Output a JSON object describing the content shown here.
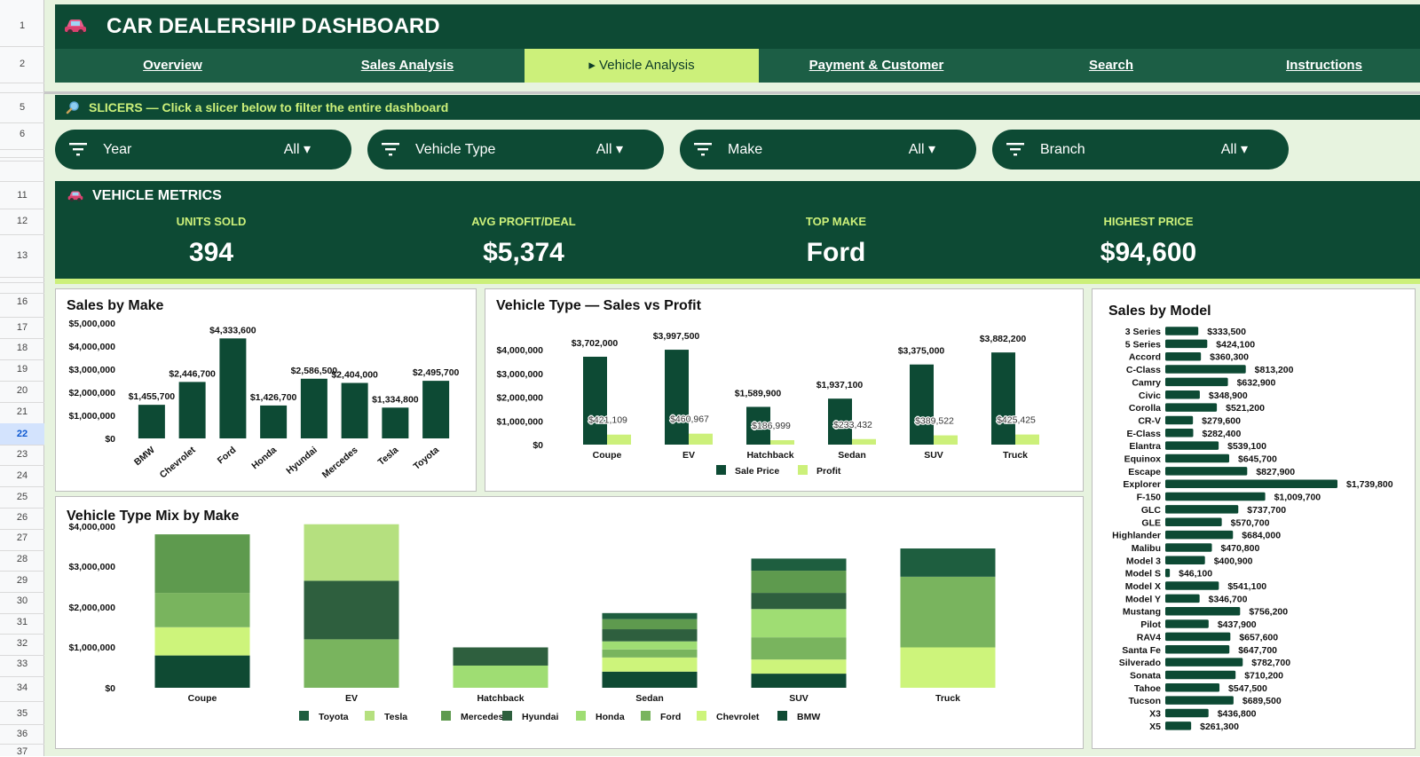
{
  "row_numbers": [
    {
      "n": "1",
      "y": 30
    },
    {
      "n": "2",
      "y": 73
    },
    {
      "n": "5",
      "y": 122
    },
    {
      "n": "6",
      "y": 152
    },
    {
      "n": "11",
      "y": 221
    },
    {
      "n": "12",
      "y": 250
    },
    {
      "n": "13",
      "y": 289
    },
    {
      "n": "16",
      "y": 341
    },
    {
      "n": "17",
      "y": 370
    },
    {
      "n": "18",
      "y": 393
    },
    {
      "n": "19",
      "y": 417
    },
    {
      "n": "20",
      "y": 441
    },
    {
      "n": "21",
      "y": 465
    },
    {
      "n": "22",
      "y": 489
    },
    {
      "n": "23",
      "y": 513
    },
    {
      "n": "24",
      "y": 537
    },
    {
      "n": "25",
      "y": 561
    },
    {
      "n": "26",
      "y": 584
    },
    {
      "n": "27",
      "y": 607
    },
    {
      "n": "28",
      "y": 631
    },
    {
      "n": "29",
      "y": 655
    },
    {
      "n": "30",
      "y": 678
    },
    {
      "n": "31",
      "y": 702
    },
    {
      "n": "32",
      "y": 726
    },
    {
      "n": "33",
      "y": 749
    },
    {
      "n": "34",
      "y": 776
    },
    {
      "n": "35",
      "y": 805
    },
    {
      "n": "36",
      "y": 828
    },
    {
      "n": "37",
      "y": 848
    }
  ],
  "selected_row": "22",
  "header": {
    "title": "CAR DEALERSHIP DASHBOARD",
    "icon": "car-icon"
  },
  "nav": {
    "tabs": [
      {
        "label": "Overview",
        "active": false
      },
      {
        "label": "Sales Analysis",
        "active": false
      },
      {
        "label": "▸ Vehicle Analysis",
        "active": true
      },
      {
        "label": "Payment & Customer",
        "active": false
      },
      {
        "label": "Search",
        "active": false
      },
      {
        "label": "Instructions",
        "active": false
      }
    ]
  },
  "slicer_bar": {
    "text": "SLICERS — Click a slicer below to filter the entire dashboard",
    "icon": "magnifier-icon"
  },
  "slicers": [
    {
      "name": "Year",
      "value": "All ▾"
    },
    {
      "name": "Vehicle Type",
      "value": "All ▾"
    },
    {
      "name": "Make",
      "value": "All ▾"
    },
    {
      "name": "Branch",
      "value": "All ▾"
    }
  ],
  "metrics": {
    "title": "VEHICLE METRICS",
    "items": [
      {
        "label": "UNITS SOLD",
        "value": "394"
      },
      {
        "label": "AVG PROFIT/DEAL",
        "value": "$5,374"
      },
      {
        "label": "TOP MAKE",
        "value": "Ford"
      },
      {
        "label": "HIGHEST PRICE",
        "value": "$94,600"
      }
    ]
  },
  "colors": {
    "dark": "#0d4a34",
    "accent": "#ccf07a",
    "nav": "#1c5e45",
    "bar": "#0d4a34",
    "profit": "#ccf07a"
  },
  "charts": {
    "sales_by_make": {
      "title": "Sales by Make",
      "chart_data": {
        "type": "bar",
        "categories": [
          "BMW",
          "Chevrolet",
          "Ford",
          "Honda",
          "Hyundai",
          "Mercedes",
          "Tesla",
          "Toyota"
        ],
        "values": [
          1455700,
          2446700,
          4333600,
          1426700,
          2586500,
          2404000,
          1334800,
          2495700
        ],
        "labels": [
          "$1,455,700",
          "$2,446,700",
          "$4,333,600",
          "$1,426,700",
          "$2,586,500",
          "$2,404,000",
          "$1,334,800",
          "$2,495,700"
        ],
        "yticks": [
          "$0",
          "$1,000,000",
          "$2,000,000",
          "$3,000,000",
          "$4,000,000",
          "$5,000,000"
        ],
        "ylim": [
          0,
          5000000
        ]
      }
    },
    "type_sales_profit": {
      "title": "Vehicle Type — Sales vs Profit",
      "chart_data": {
        "type": "bar",
        "categories": [
          "Coupe",
          "EV",
          "Hatchback",
          "Sedan",
          "SUV",
          "Truck"
        ],
        "series": [
          {
            "name": "Sale Price",
            "values": [
              3702000,
              3997500,
              1589900,
              1937100,
              3375000,
              3882200
            ],
            "labels": [
              "$3,702,000",
              "$3,997,500",
              "$1,589,900",
              "$1,937,100",
              "$3,375,000",
              "$3,882,200"
            ]
          },
          {
            "name": "Profit",
            "values": [
              421109,
              460967,
              186999,
              233432,
              389522,
              425425
            ],
            "labels": [
              "$421,109",
              "$460,967",
              "$186,999",
              "$233,432",
              "$389,522",
              "$425,425"
            ]
          }
        ],
        "yticks": [
          "$0",
          "$1,000,000",
          "$2,000,000",
          "$3,000,000",
          "$4,000,000"
        ],
        "ylim": [
          0,
          4000000
        ],
        "legend": "bottom"
      }
    },
    "type_mix": {
      "title": "Vehicle Type Mix by Make",
      "chart_data": {
        "type": "bar",
        "stacked": true,
        "categories": [
          "Coupe",
          "EV",
          "Hatchback",
          "Sedan",
          "SUV",
          "Truck"
        ],
        "series": [
          {
            "name": "Toyota",
            "color": "#1e5e3f",
            "values": [
              0,
              0,
              0,
              150000,
              300000,
              700000
            ]
          },
          {
            "name": "Tesla",
            "color": "#b5e07f",
            "values": [
              0,
              1400000,
              0,
              0,
              0,
              0
            ]
          },
          {
            "name": "Mercedes",
            "color": "#5e9a4e",
            "values": [
              1450000,
              0,
              0,
              250000,
              550000,
              0
            ]
          },
          {
            "name": "Hyundai",
            "color": "#2e5f3e",
            "values": [
              0,
              1450000,
              450000,
              300000,
              400000,
              0
            ]
          },
          {
            "name": "Honda",
            "color": "#9fdd73",
            "values": [
              0,
              0,
              550000,
              200000,
              700000,
              0
            ]
          },
          {
            "name": "Ford",
            "color": "#79b45e",
            "values": [
              850000,
              1200000,
              0,
              200000,
              550000,
              1750000
            ]
          },
          {
            "name": "Chevrolet",
            "color": "#cdf47b",
            "values": [
              700000,
              0,
              0,
              350000,
              350000,
              1000000
            ]
          },
          {
            "name": "BMW",
            "color": "#0f4a33",
            "values": [
              800000,
              0,
              0,
              400000,
              350000,
              0
            ]
          }
        ],
        "yticks": [
          "$0",
          "$1,000,000",
          "$2,000,000",
          "$3,000,000",
          "$4,000,000"
        ],
        "ylim": [
          0,
          4000000
        ],
        "legend": "bottom"
      }
    },
    "sales_by_model": {
      "title": "Sales by Model",
      "chart_data": {
        "type": "bar",
        "orientation": "horizontal",
        "categories": [
          "3 Series",
          "5 Series",
          "Accord",
          "C-Class",
          "Camry",
          "Civic",
          "Corolla",
          "CR-V",
          "E-Class",
          "Elantra",
          "Equinox",
          "Escape",
          "Explorer",
          "F-150",
          "GLC",
          "GLE",
          "Highlander",
          "Malibu",
          "Model 3",
          "Model S",
          "Model X",
          "Model Y",
          "Mustang",
          "Pilot",
          "RAV4",
          "Santa Fe",
          "Silverado",
          "Sonata",
          "Tahoe",
          "Tucson",
          "X3",
          "X5"
        ],
        "values": [
          333500,
          424100,
          360300,
          813200,
          632900,
          348900,
          521200,
          279600,
          282400,
          539100,
          645700,
          827900,
          1739800,
          1009700,
          737700,
          570700,
          684000,
          470800,
          400900,
          46100,
          541100,
          346700,
          756200,
          437900,
          657600,
          647700,
          782700,
          710200,
          547500,
          689500,
          436800,
          261300
        ],
        "labels": [
          "$333,500",
          "$424,100",
          "$360,300",
          "$813,200",
          "$632,900",
          "$348,900",
          "$521,200",
          "$279,600",
          "$282,400",
          "$539,100",
          "$645,700",
          "$827,900",
          "$1,739,800",
          "$1,009,700",
          "$737,700",
          "$570,700",
          "$684,000",
          "$470,800",
          "$400,900",
          "$46,100",
          "$541,100",
          "$346,700",
          "$756,200",
          "$437,900",
          "$657,600",
          "$647,700",
          "$782,700",
          "$710,200",
          "$547,500",
          "$689,500",
          "$436,800",
          "$261,300"
        ]
      }
    }
  }
}
